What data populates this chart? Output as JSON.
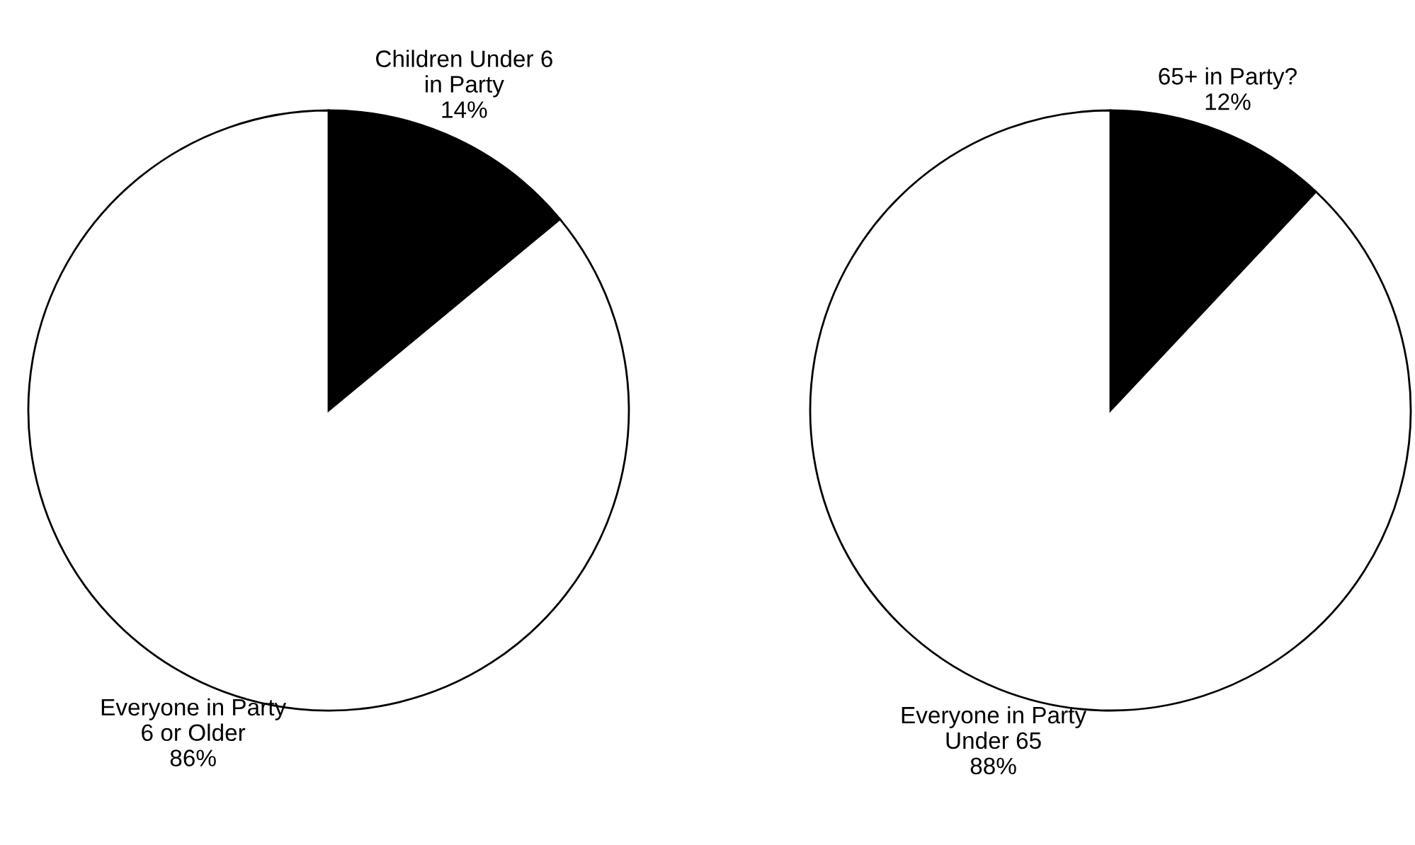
{
  "chart_data": [
    {
      "type": "pie",
      "categories": [
        "Children Under 6\nin Party",
        "Everyone in Party\n6 or Older"
      ],
      "values": [
        14,
        86
      ],
      "colors": [
        "#000000",
        "#ffffff"
      ],
      "value_labels": [
        "14%",
        "86%"
      ]
    },
    {
      "type": "pie",
      "categories": [
        "65+ in Party?",
        "Everyone in Party\nUnder 65"
      ],
      "values": [
        12,
        88
      ],
      "colors": [
        "#000000",
        "#ffffff"
      ],
      "value_labels": [
        "12%",
        "88%"
      ]
    }
  ]
}
